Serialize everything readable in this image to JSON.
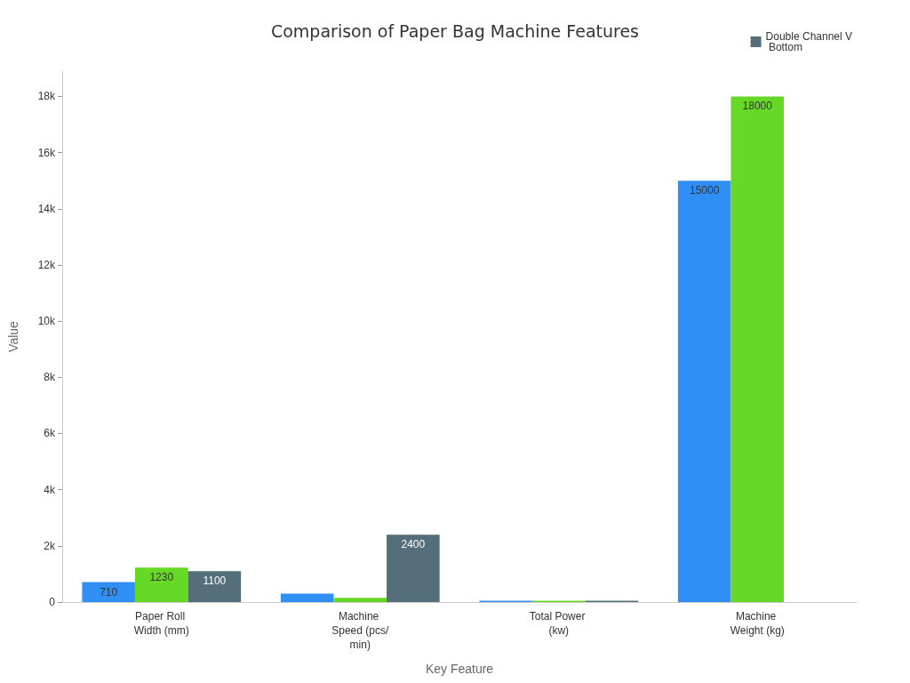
{
  "chart_data": {
    "type": "bar",
    "title": "Comparison of Paper Bag Machine Features",
    "xlabel": "Key Feature",
    "ylabel": "Value",
    "categories": [
      "Paper Roll Width (mm)",
      "Machine Speed (pcs/min)",
      "Total Power (kw)",
      "Machine Weight (kg)"
    ],
    "series": [
      {
        "color": "#2f8ff5",
        "values": [
          710,
          300,
          50,
          15000
        ],
        "value_labels": [
          "710",
          null,
          null,
          "15000"
        ]
      },
      {
        "color": "#66d926",
        "values": [
          1230,
          150,
          50,
          18000
        ],
        "value_labels": [
          "1230",
          null,
          null,
          "18000"
        ]
      },
      {
        "name": "Double Channel V Bottom",
        "color": "#546e7a",
        "values": [
          1100,
          2400,
          50,
          null
        ],
        "value_labels": [
          "1100",
          "2400",
          null,
          null
        ]
      }
    ],
    "ylim": [
      0,
      18900
    ],
    "yticks": [
      0,
      {
        "value": 2000,
        "label": "2k"
      },
      {
        "value": 4000,
        "label": "4k"
      },
      {
        "value": 6000,
        "label": "6k"
      },
      {
        "value": 8000,
        "label": "8k"
      },
      {
        "value": 10000,
        "label": "10k"
      },
      {
        "value": 12000,
        "label": "12k"
      },
      {
        "value": 14000,
        "label": "14k"
      },
      {
        "value": 16000,
        "label": "16k"
      },
      {
        "value": 18000,
        "label": "18k"
      }
    ],
    "grid": false,
    "legend": "top right"
  }
}
